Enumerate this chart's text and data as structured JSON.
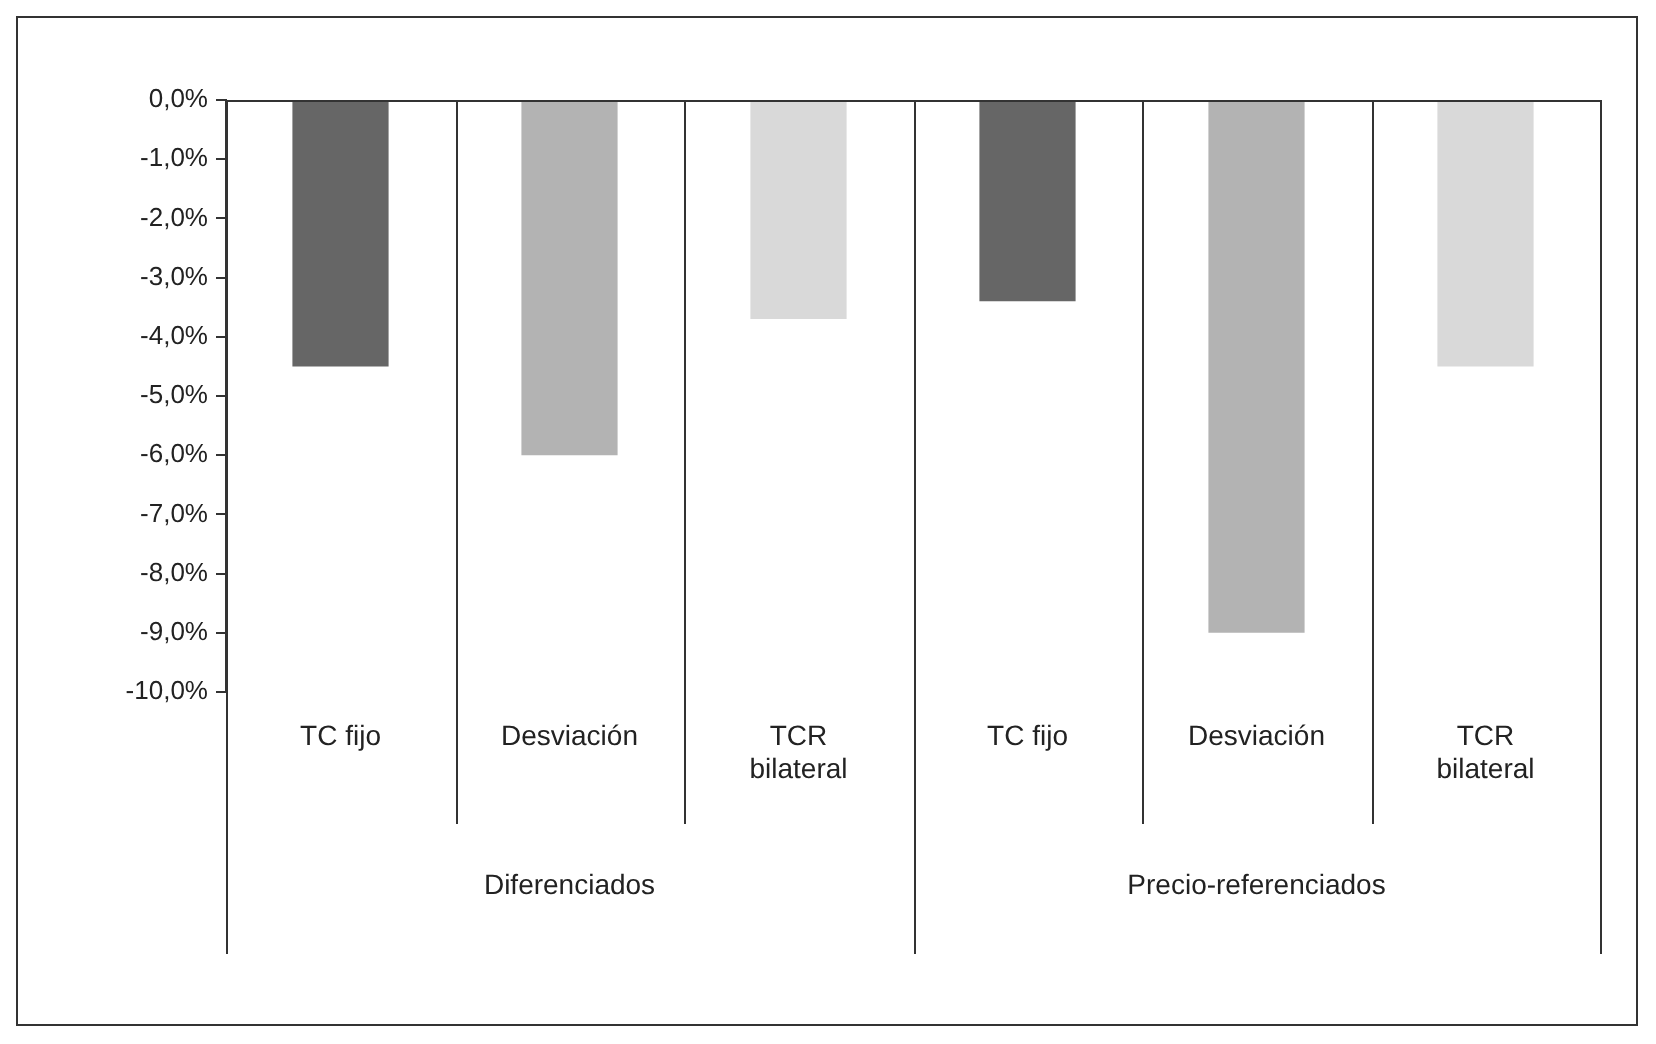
{
  "chart_data": {
    "type": "bar",
    "categories": [
      "TC fijo",
      "Desviación",
      "TCR bilateral",
      "TC fijo",
      "Desviación",
      "TCR bilateral"
    ],
    "values": [
      -4.5,
      -6.0,
      -3.7,
      -3.4,
      -9.0,
      -4.5
    ],
    "colors": [
      "#666666",
      "#b3b3b3",
      "#d9d9d9",
      "#666666",
      "#b3b3b3",
      "#d9d9d9"
    ],
    "ylim": [
      -10,
      0
    ],
    "yticks": [
      {
        "value": 0,
        "label": "0,0%"
      },
      {
        "value": -1,
        "label": "-1,0%"
      },
      {
        "value": -2,
        "label": "-2,0%"
      },
      {
        "value": -3,
        "label": "-3,0%"
      },
      {
        "value": -4,
        "label": "-4,0%"
      },
      {
        "value": -5,
        "label": "-5,0%"
      },
      {
        "value": -6,
        "label": "-6,0%"
      },
      {
        "value": -7,
        "label": "-7,0%"
      },
      {
        "value": -8,
        "label": "-8,0%"
      },
      {
        "value": -9,
        "label": "-9,0%"
      },
      {
        "value": -10,
        "label": "-10,0%"
      }
    ],
    "annotations": [
      "Diferenciados",
      "Precio-referenciados"
    ],
    "grid": false,
    "legend": false
  }
}
